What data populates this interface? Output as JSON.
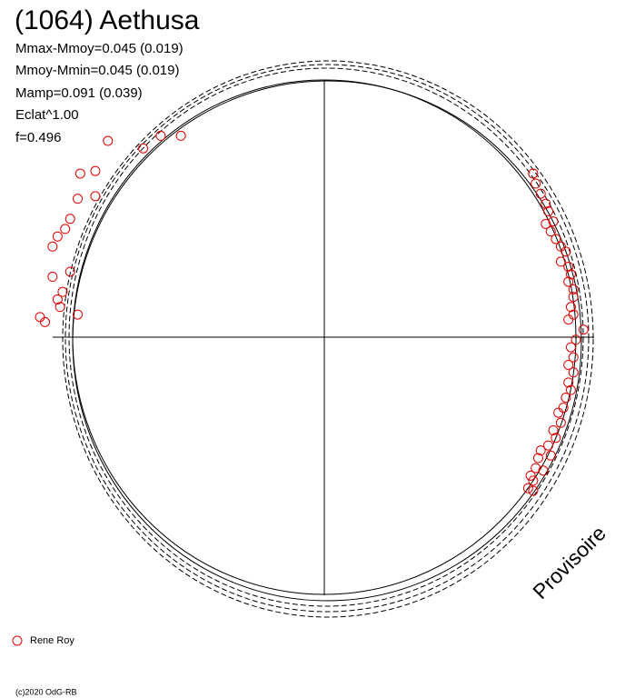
{
  "chart_data": {
    "type": "scatter",
    "title": "(1064) Aethusa",
    "stats": [
      "Mmax-Mmoy=0.045 (0.019)",
      "Mmoy-Mmin=0.045 (0.019)",
      "Mamp=0.091 (0.039)",
      "Eclat^1.00",
      "f=0.496"
    ],
    "watermark": "Provisoire",
    "footer": "(c)2020 OdG-RB",
    "xlim": [
      -1.2,
      1.2
    ],
    "ylim": [
      -1.2,
      1.2
    ],
    "series": [
      {
        "name": "Rene Roy",
        "color": "#e00000",
        "x": [
          -0.86,
          -0.72,
          -0.65,
          -0.57,
          -0.97,
          -0.91,
          -0.98,
          -0.91,
          -1.01,
          -1.03,
          -1.06,
          -1.08,
          -1.01,
          -1.08,
          -1.04,
          -1.06,
          -1.05,
          -1.13,
          -1.11,
          -0.98,
          0.83,
          0.84,
          0.86,
          0.88,
          0.89,
          0.88,
          0.91,
          0.9,
          0.92,
          0.94,
          0.96,
          0.94,
          0.97,
          0.98,
          0.97,
          0.99,
          0.99,
          0.98,
          0.99,
          0.97,
          1.03,
          1.0,
          0.98,
          0.99,
          0.97,
          0.99,
          0.97,
          0.98,
          0.96,
          0.95,
          0.93,
          0.94,
          0.91,
          0.92,
          0.89,
          0.9,
          0.86,
          0.85,
          0.84,
          0.82,
          0.83,
          0.81,
          0.83,
          0.87
        ],
        "y": [
          0.78,
          0.75,
          0.8,
          0.8,
          0.65,
          0.66,
          0.55,
          0.56,
          0.47,
          0.43,
          0.4,
          0.36,
          0.26,
          0.24,
          0.18,
          0.15,
          0.12,
          0.08,
          0.06,
          0.09,
          0.65,
          0.61,
          0.57,
          0.53,
          0.5,
          0.45,
          0.46,
          0.42,
          0.39,
          0.36,
          0.34,
          0.3,
          0.28,
          0.25,
          0.22,
          0.19,
          0.16,
          0.12,
          0.09,
          0.07,
          0.03,
          -0.01,
          -0.04,
          -0.08,
          -0.11,
          -0.14,
          -0.18,
          -0.21,
          -0.24,
          -0.28,
          -0.3,
          -0.34,
          -0.37,
          -0.4,
          -0.43,
          -0.47,
          -0.45,
          -0.48,
          -0.52,
          -0.55,
          -0.57,
          -0.6,
          -0.61,
          -0.53
        ]
      }
    ]
  }
}
